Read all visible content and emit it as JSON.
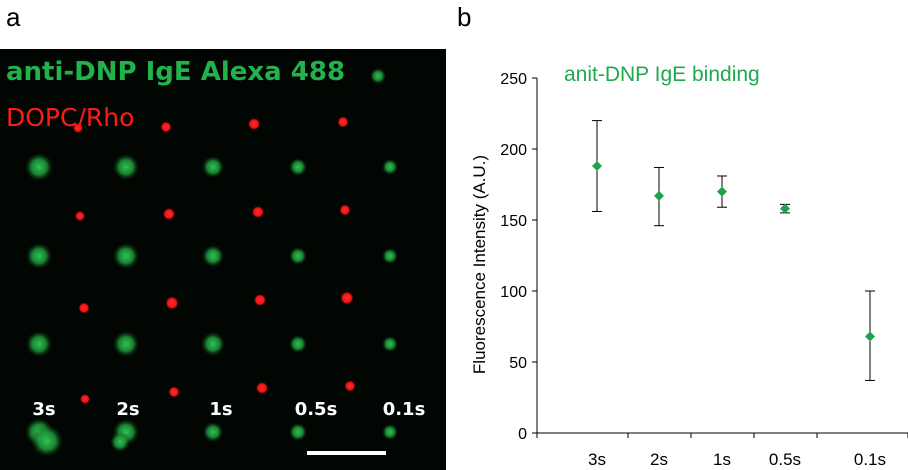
{
  "panels": {
    "a": "a",
    "b": "b"
  },
  "micrograph": {
    "label_green": "anti-DNP IgE Alexa 488",
    "label_red": "DOPC/Rho",
    "time_labels": [
      "3s",
      "2s",
      "1s",
      "0.5s",
      "0.1s"
    ],
    "colors": {
      "green": "#22b24c",
      "red": "#ff1a1a"
    }
  },
  "chart_data": {
    "type": "scatter",
    "title": "anit-DNP IgE binding",
    "xlabel": "",
    "ylabel": "Fluorescence Intensity (A.U.)",
    "categories": [
      "3s",
      "2s",
      "1s",
      "0.5s",
      "0.1s"
    ],
    "values": [
      188,
      167,
      170,
      158,
      68
    ],
    "error_low": [
      156,
      146,
      159,
      155,
      37
    ],
    "error_high": [
      220,
      187,
      181,
      161,
      100
    ],
    "ylim": [
      0,
      250
    ],
    "yticks": [
      0,
      50,
      100,
      150,
      200,
      250
    ],
    "grid": false,
    "marker_color": "#1fa24e",
    "title_color": "#21a84f"
  }
}
